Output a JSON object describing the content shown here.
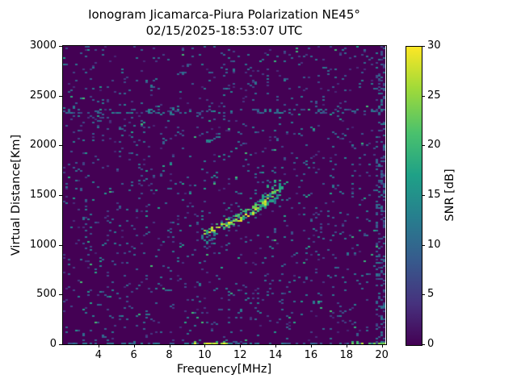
{
  "figure_title": "Ionogram Jicamarca-Piura Polarization NE45°",
  "figure_subtitle": "02/15/2025-18:53:07 UTC",
  "chart_data": {
    "type": "heatmap",
    "title": "Ionogram Jicamarca-Piura Polarization NE45°",
    "subtitle": "02/15/2025-18:53:07 UTC",
    "xlabel": "Frequency[MHz]",
    "ylabel": "Virtual Distance[Km]",
    "xlim": [
      2,
      20.2
    ],
    "ylim": [
      0,
      3000
    ],
    "xticks": [
      4,
      6,
      8,
      10,
      12,
      14,
      16,
      18,
      20
    ],
    "yticks": [
      0,
      500,
      1000,
      1500,
      2000,
      2500,
      3000
    ],
    "grid": false,
    "colorbar": {
      "label": "SNR [dB]",
      "min": 0,
      "max": 30,
      "ticks": [
        0,
        5,
        10,
        15,
        20,
        25,
        30
      ],
      "colormap": "viridis",
      "gradient_stops": [
        [
          0.0,
          "#440154"
        ],
        [
          0.14,
          "#46327e"
        ],
        [
          0.29,
          "#365c8d"
        ],
        [
          0.43,
          "#277f8e"
        ],
        [
          0.57,
          "#1fa187"
        ],
        [
          0.71,
          "#4ac16d"
        ],
        [
          0.86,
          "#a0da39"
        ],
        [
          1.0,
          "#fde725"
        ]
      ]
    },
    "background_snr_db": 0,
    "noise": {
      "seed": 42,
      "base_density": 0.052,
      "snr_range_db": [
        3,
        13
      ],
      "bright_speckle_density": 0.004,
      "bright_speckle_snr_db": [
        15,
        21
      ],
      "horizontal_band": {
        "alt_km": 2350,
        "half_width_km": 24,
        "extra_density": 0.22,
        "snr_range_db": [
          6,
          15
        ]
      },
      "right_edge_column": {
        "f_min_mhz": 19.7,
        "extra_density": 0.3,
        "snr_range_db": [
          5,
          13
        ]
      }
    },
    "echo_trace": {
      "description": "Oblique F-layer echo trace rising from ~10 MHz/1100 km to ~14.5 MHz/1650 km with multi-branch hook",
      "branches": [
        {
          "name": "main-o-trace",
          "base_snr_db": 28,
          "halo_snr_db": 19,
          "thickness_km": 45,
          "points": [
            [
              9.9,
              1120
            ],
            [
              10.3,
              1142
            ],
            [
              10.7,
              1168
            ],
            [
              11.1,
              1195
            ],
            [
              11.5,
              1222
            ],
            [
              11.9,
              1255
            ],
            [
              12.3,
              1298
            ],
            [
              12.7,
              1338
            ],
            [
              13.1,
              1388
            ],
            [
              13.4,
              1422
            ],
            [
              13.65,
              1450
            ]
          ]
        },
        {
          "name": "upper-x-trace",
          "base_snr_db": 22,
          "halo_snr_db": 15,
          "thickness_km": 30,
          "points": [
            [
              11.3,
              1255
            ],
            [
              11.8,
              1296
            ],
            [
              12.3,
              1342
            ],
            [
              12.8,
              1392
            ],
            [
              13.3,
              1446
            ],
            [
              13.7,
              1496
            ],
            [
              14.0,
              1530
            ],
            [
              14.35,
              1565
            ]
          ]
        },
        {
          "name": "right-faint-trace",
          "base_snr_db": 18,
          "halo_snr_db": 13,
          "thickness_km": 25,
          "points": [
            [
              13.0,
              1355
            ],
            [
              13.5,
              1405
            ],
            [
              13.9,
              1452
            ],
            [
              14.2,
              1490
            ]
          ]
        }
      ],
      "hook_dashes": [
        {
          "f": 13.62,
          "alt_min": 1555,
          "alt_max": 1640,
          "snr_db": 17
        },
        {
          "f": 13.95,
          "alt_min": 1515,
          "alt_max": 1655,
          "snr_db": 17
        },
        {
          "f": 14.25,
          "alt_min": 1500,
          "alt_max": 1645,
          "snr_db": 16
        },
        {
          "f": 14.6,
          "alt_min": 1598,
          "alt_max": 1632,
          "snr_db": 15
        }
      ],
      "leading_scatter": {
        "snr_db": 13,
        "points": [
          [
            9.85,
            1075
          ],
          [
            9.95,
            1040
          ],
          [
            10.1,
            1020
          ],
          [
            10.2,
            1060
          ],
          [
            10.35,
            1085
          ],
          [
            10.5,
            1050
          ],
          [
            10.6,
            1095
          ],
          [
            10.15,
            1110
          ],
          [
            9.9,
            1105
          ],
          [
            10.45,
            1005
          ],
          [
            10.7,
            1115
          ]
        ]
      },
      "second_hop": {
        "snr_db": 13,
        "density": 0.55,
        "points": [
          [
            10.1,
            2025
          ],
          [
            10.35,
            2055
          ],
          [
            10.6,
            2080
          ],
          [
            10.85,
            2110
          ]
        ]
      }
    },
    "ground_clutter": {
      "base_density": 0.45,
      "base_snr_db": 10,
      "bright_segments": [
        {
          "f_min": 9.35,
          "f_max": 11.3,
          "snr_db": 26,
          "density": 0.7
        },
        {
          "f_min": 18.2,
          "f_max": 20.2,
          "snr_db": 24,
          "density": 0.45
        }
      ]
    }
  }
}
